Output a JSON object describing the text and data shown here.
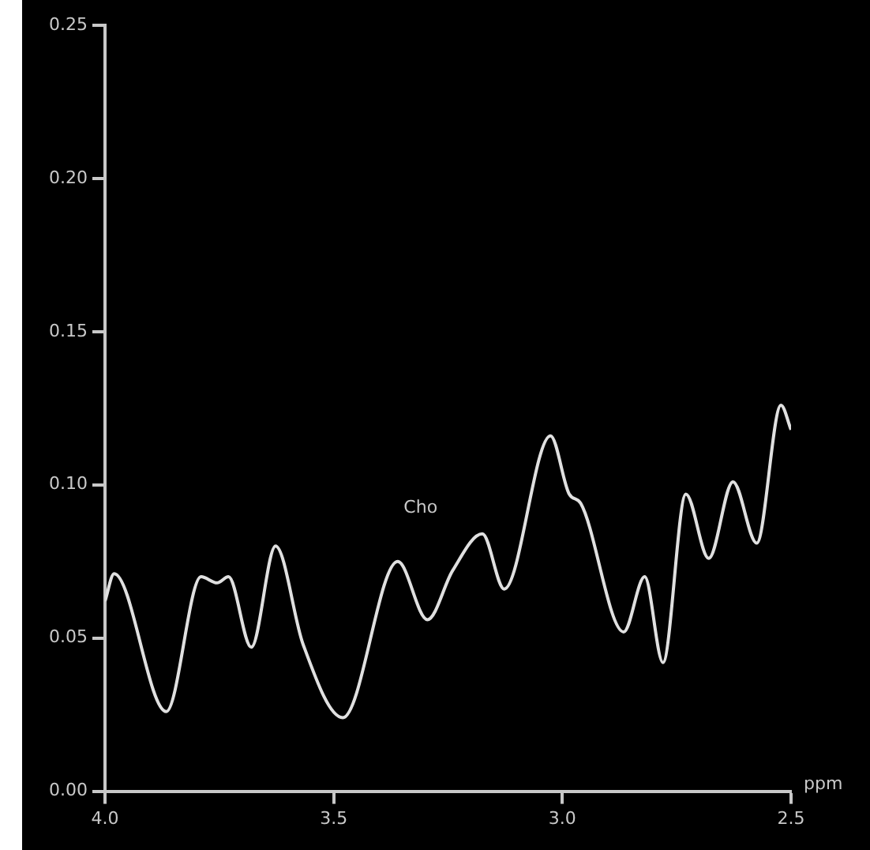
{
  "chart_data": {
    "type": "line",
    "xlabel": "ppm",
    "x": [
      4.0,
      3.98,
      3.866,
      3.79,
      3.755,
      3.73,
      3.68,
      3.627,
      3.567,
      3.48,
      3.36,
      3.295,
      3.24,
      3.175,
      3.127,
      3.026,
      2.985,
      2.96,
      2.866,
      2.82,
      2.78,
      2.73,
      2.68,
      2.627,
      2.575,
      2.522,
      2.5
    ],
    "series": [
      {
        "color": "#e0e0e0",
        "values": [
          0.062,
          0.071,
          0.026,
          0.07,
          0.068,
          0.07,
          0.047,
          0.08,
          0.048,
          0.024,
          0.075,
          0.056,
          0.072,
          0.084,
          0.066,
          0.116,
          0.097,
          0.094,
          0.052,
          0.07,
          0.042,
          0.097,
          0.076,
          0.101,
          0.081,
          0.126,
          0.118
        ]
      }
    ],
    "xlim": [
      4.0,
      2.5
    ],
    "xticks": [
      {
        "value": 4.0,
        "label": "4.0"
      },
      3.5,
      {
        "value": 3.0,
        "label": "3.0"
      },
      2.5
    ],
    "ylim": [
      0,
      0.25
    ],
    "yticks": [
      {
        "value": 0,
        "label": "0.00"
      },
      {
        "value": 0.05,
        "label": "0.05"
      },
      {
        "value": 0.1,
        "label": "0.10"
      },
      {
        "value": 0.15,
        "label": "0.15"
      },
      {
        "value": 0.2,
        "label": "0.20"
      },
      {
        "value": 0.25,
        "label": "0.25"
      }
    ],
    "grid": false,
    "legend": false,
    "marker": "none",
    "line_style": "solid",
    "annotations": [
      "Cho"
    ]
  }
}
